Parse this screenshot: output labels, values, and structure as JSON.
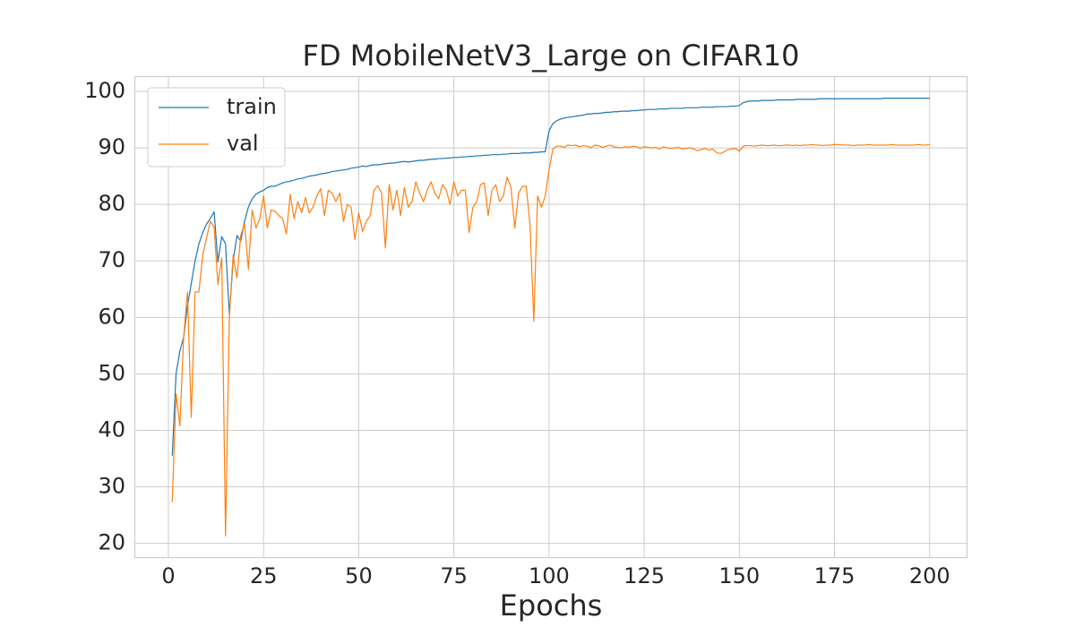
{
  "chart_data": {
    "type": "line",
    "title": "FD MobileNetV3_Large on CIFAR10",
    "xlabel": "Epochs",
    "x": [
      1,
      2,
      3,
      4,
      5,
      6,
      7,
      8,
      9,
      10,
      11,
      12,
      13,
      14,
      15,
      16,
      17,
      18,
      19,
      20,
      21,
      22,
      23,
      24,
      25,
      26,
      27,
      28,
      29,
      30,
      31,
      32,
      33,
      34,
      35,
      36,
      37,
      38,
      39,
      40,
      41,
      42,
      43,
      44,
      45,
      46,
      47,
      48,
      49,
      50,
      51,
      52,
      53,
      54,
      55,
      56,
      57,
      58,
      59,
      60,
      61,
      62,
      63,
      64,
      65,
      66,
      67,
      68,
      69,
      70,
      71,
      72,
      73,
      74,
      75,
      76,
      77,
      78,
      79,
      80,
      81,
      82,
      83,
      84,
      85,
      86,
      87,
      88,
      89,
      90,
      91,
      92,
      93,
      94,
      95,
      96,
      97,
      98,
      99,
      100,
      101,
      102,
      103,
      104,
      105,
      106,
      107,
      108,
      109,
      110,
      111,
      112,
      113,
      114,
      115,
      116,
      117,
      118,
      119,
      120,
      121,
      122,
      123,
      124,
      125,
      126,
      127,
      128,
      129,
      130,
      131,
      132,
      133,
      134,
      135,
      136,
      137,
      138,
      139,
      140,
      141,
      142,
      143,
      144,
      145,
      146,
      147,
      148,
      149,
      150,
      151,
      152,
      153,
      154,
      155,
      156,
      157,
      158,
      159,
      160,
      161,
      162,
      163,
      164,
      165,
      166,
      167,
      168,
      169,
      170,
      171,
      172,
      173,
      174,
      175,
      176,
      177,
      178,
      179,
      180,
      181,
      182,
      183,
      184,
      185,
      186,
      187,
      188,
      189,
      190,
      191,
      192,
      193,
      194,
      195,
      196,
      197,
      198,
      199,
      200
    ],
    "series": [
      {
        "name": "train",
        "color": "#1f77b4",
        "values": [
          35.5,
          50,
          54,
          56.5,
          62,
          66,
          70,
          73,
          75,
          76.5,
          77.5,
          78.7,
          69.8,
          74.3,
          73,
          60.5,
          70,
          74.5,
          73.5,
          77,
          79.5,
          81,
          81.8,
          82.2,
          82.5,
          83,
          83.2,
          83.2,
          83.5,
          83.8,
          84,
          84.1,
          84.3,
          84.5,
          84.6,
          84.8,
          85,
          85.1,
          85.2,
          85.4,
          85.5,
          85.6,
          85.8,
          85.9,
          86,
          86.1,
          86.2,
          86.4,
          86.5,
          86.6,
          86.8,
          86.7,
          86.9,
          87,
          87,
          87.1,
          87.2,
          87.3,
          87.3,
          87.4,
          87.5,
          87.6,
          87.5,
          87.6,
          87.7,
          87.8,
          87.8,
          87.9,
          88,
          88,
          88.1,
          88.1,
          88.2,
          88.2,
          88.3,
          88.3,
          88.4,
          88.4,
          88.5,
          88.5,
          88.6,
          88.6,
          88.7,
          88.7,
          88.8,
          88.8,
          88.8,
          88.9,
          88.9,
          89,
          89,
          89,
          89.1,
          89.1,
          89.1,
          89.2,
          89.2,
          89.3,
          89.3,
          93,
          94.3,
          94.8,
          95.1,
          95.3,
          95.4,
          95.5,
          95.6,
          95.7,
          95.8,
          96,
          96,
          96.1,
          96.1,
          96.2,
          96.3,
          96.3,
          96.4,
          96.4,
          96.5,
          96.5,
          96.5,
          96.6,
          96.6,
          96.7,
          96.7,
          96.8,
          96.8,
          96.8,
          96.9,
          96.9,
          96.9,
          97,
          97,
          97,
          97,
          97.1,
          97.1,
          97.1,
          97.1,
          97.2,
          97.2,
          97.2,
          97.2,
          97.3,
          97.3,
          97.3,
          97.3,
          97.4,
          97.4,
          97.5,
          98,
          98.2,
          98.3,
          98.3,
          98.3,
          98.4,
          98.4,
          98.4,
          98.4,
          98.5,
          98.5,
          98.5,
          98.5,
          98.5,
          98.6,
          98.6,
          98.6,
          98.6,
          98.6,
          98.6,
          98.7,
          98.7,
          98.7,
          98.7,
          98.7,
          98.7,
          98.7,
          98.7,
          98.7,
          98.7,
          98.7,
          98.7,
          98.7,
          98.7,
          98.7,
          98.7,
          98.7,
          98.8,
          98.8,
          98.8,
          98.8,
          98.8,
          98.8,
          98.8,
          98.8,
          98.8,
          98.8,
          98.8,
          98.8,
          98.8
        ]
      },
      {
        "name": "val",
        "color": "#ff7f0e",
        "values": [
          27.3,
          46.5,
          40.8,
          56.5,
          64.5,
          42.3,
          64.5,
          64.5,
          71,
          74,
          77,
          76,
          65.8,
          70.5,
          21.3,
          60,
          71,
          67,
          74.5,
          76.5,
          68.5,
          79,
          75.8,
          77.5,
          81.5,
          75.8,
          79,
          78.8,
          78,
          77.5,
          74.8,
          81.8,
          77.5,
          80.5,
          78.5,
          81.2,
          78.5,
          79.5,
          81.5,
          82.8,
          78,
          82.5,
          82,
          80.5,
          82,
          77,
          80,
          79.5,
          73.8,
          78.5,
          75.2,
          77,
          78,
          82.5,
          83.3,
          82,
          72.3,
          83.5,
          79,
          82.5,
          78,
          83,
          79.5,
          80.5,
          84,
          82,
          80.5,
          82.5,
          84,
          82,
          81,
          83.5,
          82.5,
          80,
          84,
          81.5,
          82.5,
          82.5,
          75,
          79.5,
          80.5,
          83.5,
          83.8,
          78,
          82.5,
          83.5,
          80.5,
          81.5,
          84.8,
          83,
          75.8,
          82,
          83.2,
          83.2,
          76.5,
          59.3,
          81.5,
          79.5,
          81.5,
          86,
          89.8,
          90.3,
          90.3,
          90.1,
          90.5,
          90.4,
          90.5,
          90.2,
          90.4,
          90.3,
          90.0,
          90.5,
          90.4,
          90.1,
          90.3,
          90.5,
          90.2,
          90.1,
          90.0,
          90.2,
          90.1,
          90.3,
          90.2,
          89.9,
          90.2,
          90.1,
          90.0,
          90.1,
          89.8,
          90.2,
          90.0,
          89.9,
          90.0,
          90.1,
          89.8,
          89.9,
          90.0,
          89.8,
          89.5,
          89.7,
          89.9,
          89.6,
          89.8,
          89.2,
          89.0,
          89.3,
          89.7,
          89.8,
          89.9,
          89.4,
          90.3,
          90.4,
          90.4,
          90.3,
          90.4,
          90.5,
          90.4,
          90.4,
          90.5,
          90.4,
          90.4,
          90.5,
          90.5,
          90.4,
          90.5,
          90.4,
          90.5,
          90.5,
          90.6,
          90.5,
          90.5,
          90.4,
          90.5,
          90.5,
          90.6,
          90.6,
          90.5,
          90.5,
          90.5,
          90.4,
          90.5,
          90.5,
          90.5,
          90.6,
          90.5,
          90.5,
          90.5,
          90.5,
          90.5,
          90.6,
          90.5,
          90.5,
          90.5,
          90.5,
          90.5,
          90.5,
          90.6,
          90.5,
          90.5,
          90.6
        ]
      }
    ],
    "xlim": [
      -8.95,
      209.95
    ],
    "ylim": [
      17.4,
      102.7
    ],
    "xticks": [
      0,
      25,
      50,
      75,
      100,
      125,
      150,
      175,
      200
    ],
    "yticks": [
      20,
      30,
      40,
      50,
      60,
      70,
      80,
      90,
      100
    ],
    "grid": true,
    "legend": "upper-left"
  }
}
